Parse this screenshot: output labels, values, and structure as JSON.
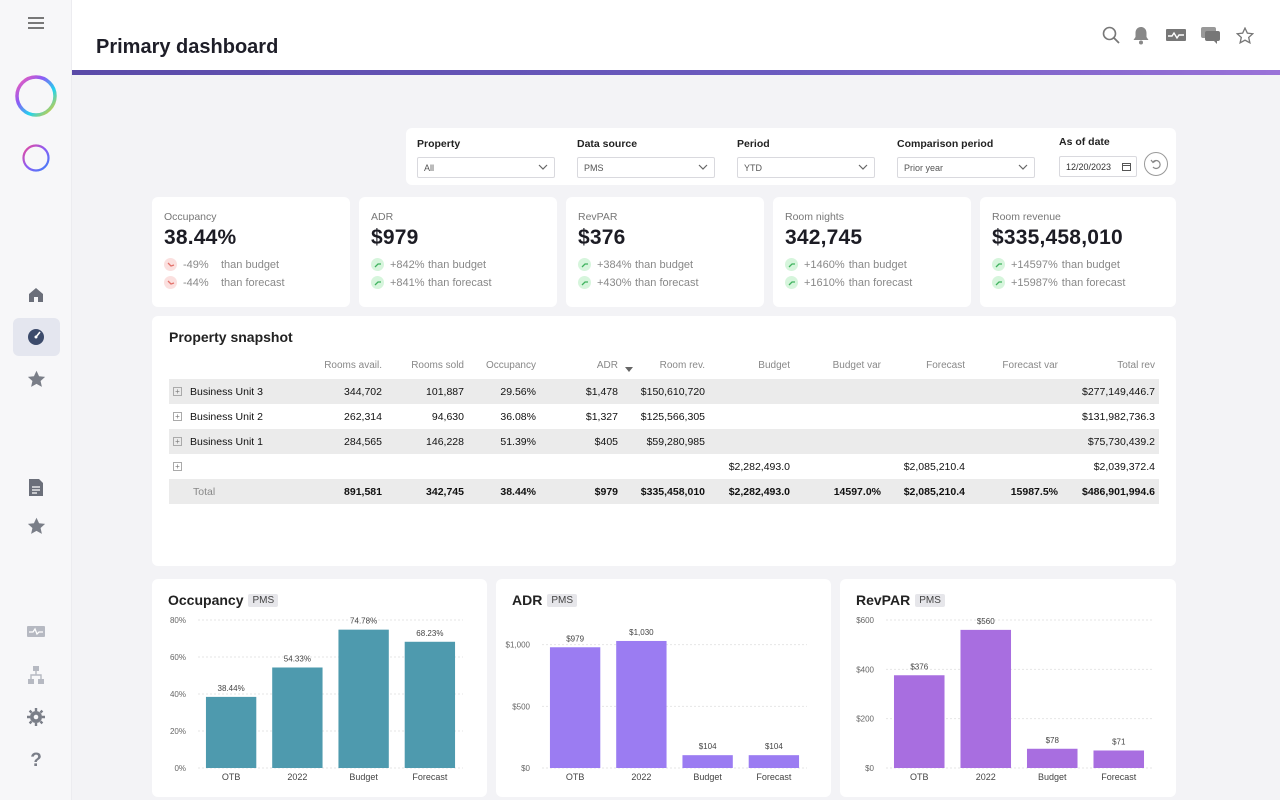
{
  "header": {
    "title": "Primary dashboard"
  },
  "header_icons": [
    "search-icon",
    "bell-icon",
    "monitor-icon",
    "chat-icon",
    "star-icon"
  ],
  "sidebar": {
    "items": [
      "menu-icon",
      "color-ring-logo",
      "color-ring-small-logo",
      "home-icon",
      "dashboard-gauge-icon",
      "star-icon",
      "document-icon",
      "star-icon",
      "monitor-icon",
      "hierarchy-icon",
      "settings-icon",
      "help-icon"
    ]
  },
  "filters": {
    "property": {
      "label": "Property",
      "value": "All"
    },
    "data_source": {
      "label": "Data source",
      "value": "PMS"
    },
    "period": {
      "label": "Period",
      "value": "YTD"
    },
    "comparison": {
      "label": "Comparison period",
      "value": "Prior year"
    },
    "as_of": {
      "label": "As of date",
      "value": "12/20/2023"
    }
  },
  "kpis": [
    {
      "label": "Occupancy",
      "value": "38.44%",
      "rows": [
        {
          "trend": "down",
          "pct": "-49%",
          "text": "than budget"
        },
        {
          "trend": "down",
          "pct": "-44%",
          "text": "than forecast"
        }
      ]
    },
    {
      "label": "ADR",
      "value": "$979",
      "rows": [
        {
          "trend": "up",
          "pct": "+842%",
          "text": "than budget"
        },
        {
          "trend": "up",
          "pct": "+841%",
          "text": "than forecast"
        }
      ]
    },
    {
      "label": "RevPAR",
      "value": "$376",
      "rows": [
        {
          "trend": "up",
          "pct": "+384%",
          "text": "than budget"
        },
        {
          "trend": "up",
          "pct": "+430%",
          "text": "than forecast"
        }
      ]
    },
    {
      "label": "Room nights",
      "value": "342,745",
      "rows": [
        {
          "trend": "up",
          "pct": "+1460%",
          "text": "than budget"
        },
        {
          "trend": "up",
          "pct": "+1610%",
          "text": "than forecast"
        }
      ]
    },
    {
      "label": "Room revenue",
      "value": "$335,458,010",
      "rows": [
        {
          "trend": "up",
          "pct": "+14597%",
          "text": "than budget"
        },
        {
          "trend": "up",
          "pct": "+15987%",
          "text": "than forecast"
        }
      ]
    }
  ],
  "snapshot": {
    "title": "Property snapshot",
    "columns": [
      "",
      "Rooms avail.",
      "Rooms sold",
      "Occupancy",
      "ADR",
      "Room rev.",
      "Budget",
      "Budget var",
      "Forecast",
      "Forecast var",
      "Total rev"
    ],
    "rows": [
      [
        "Business Unit 3",
        "344,702",
        "101,887",
        "29.56%",
        "$1,478",
        "$150,610,720",
        "",
        "",
        "",
        "",
        "$277,149,446.7"
      ],
      [
        "Business Unit 2",
        "262,314",
        "94,630",
        "36.08%",
        "$1,327",
        "$125,566,305",
        "",
        "",
        "",
        "",
        "$131,982,736.3"
      ],
      [
        "Business Unit 1",
        "284,565",
        "146,228",
        "51.39%",
        "$405",
        "$59,280,985",
        "",
        "",
        "",
        "",
        "$75,730,439.2"
      ],
      [
        "",
        "",
        "",
        "",
        "",
        "",
        "$2,282,493.0",
        "",
        "$2,085,210.4",
        "",
        "$2,039,372.4"
      ]
    ],
    "total": [
      "Total",
      "891,581",
      "342,745",
      "38.44%",
      "$979",
      "$335,458,010",
      "$2,282,493.0",
      "14597.0%",
      "$2,085,210.4",
      "15987.5%",
      "$486,901,994.6"
    ]
  },
  "chart_data": [
    {
      "type": "bar",
      "title": "Occupancy",
      "chip": "PMS",
      "color": "#4e9aae",
      "categories": [
        "OTB",
        "2022",
        "Budget",
        "Forecast"
      ],
      "values": [
        38.44,
        54.33,
        74.78,
        68.23
      ],
      "labels": [
        "38.44%",
        "54.33%",
        "74.78%",
        "68.23%"
      ],
      "yticks": [
        0,
        20,
        40,
        60,
        80
      ],
      "ytick_labels": [
        "0%",
        "20%",
        "40%",
        "60%",
        "80%"
      ],
      "ylim": [
        0,
        80
      ]
    },
    {
      "type": "bar",
      "title": "ADR",
      "chip": "PMS",
      "color": "#9b7cf2",
      "categories": [
        "OTB",
        "2022",
        "Budget",
        "Forecast"
      ],
      "values": [
        979,
        1030,
        104,
        104
      ],
      "labels": [
        "$979",
        "$1,030",
        "$104",
        "$104"
      ],
      "yticks": [
        0,
        500,
        1000
      ],
      "ytick_labels": [
        "$0",
        "$500",
        "$1,000"
      ],
      "ylim": [
        0,
        1200
      ]
    },
    {
      "type": "bar",
      "title": "RevPAR",
      "chip": "PMS",
      "color": "#a86ee0",
      "categories": [
        "OTB",
        "2022",
        "Budget",
        "Forecast"
      ],
      "values": [
        376,
        560,
        78,
        71
      ],
      "labels": [
        "$376",
        "$560",
        "$78",
        "$71"
      ],
      "yticks": [
        0,
        200,
        400,
        600
      ],
      "ytick_labels": [
        "$0",
        "$200",
        "$400",
        "$600"
      ],
      "ylim": [
        0,
        600
      ]
    }
  ]
}
